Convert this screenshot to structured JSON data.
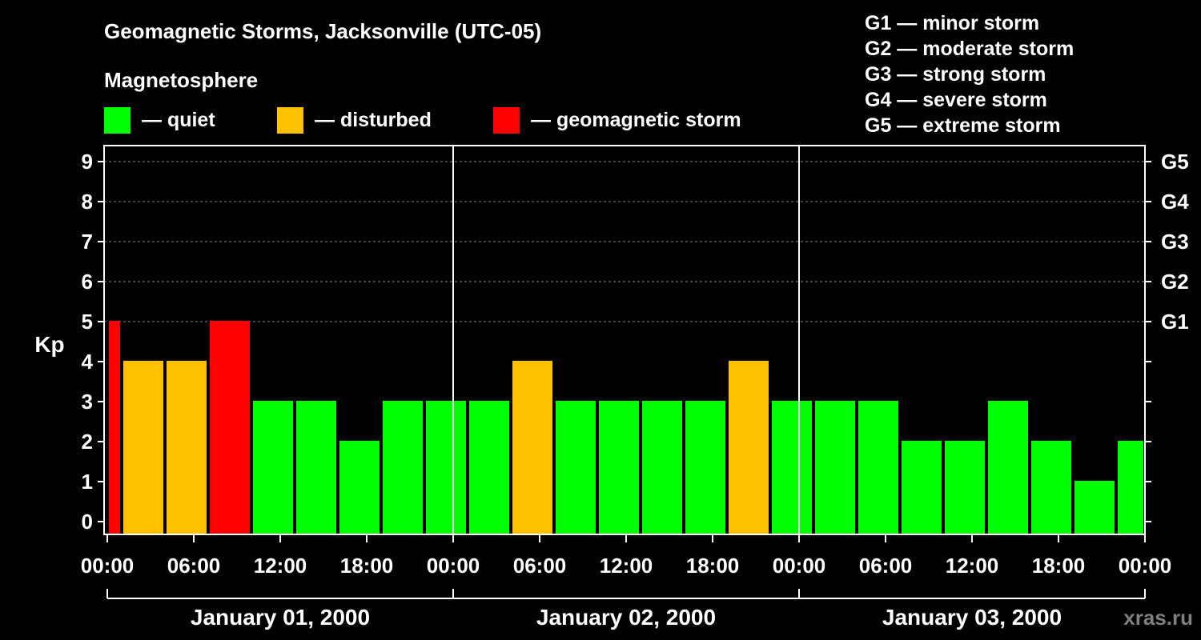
{
  "colors": {
    "background": "#000000",
    "quiet": "#00ff00",
    "disturbed": "#ffc000",
    "storm": "#ff0000",
    "grid": "#888888",
    "axis": "#ffffff"
  },
  "chart_data": {
    "type": "bar",
    "title": "Geomagnetic Storms, Jacksonville (UTC-05)",
    "subtitle": "Magnetosphere",
    "ylabel": "Kp",
    "ylim": [
      0,
      9
    ],
    "y_ticks": [
      "0",
      "1",
      "2",
      "3",
      "4",
      "5",
      "6",
      "7",
      "8",
      "9"
    ],
    "g_ticks": [
      {
        "kp": 5,
        "label": "G1"
      },
      {
        "kp": 6,
        "label": "G2"
      },
      {
        "kp": 7,
        "label": "G3"
      },
      {
        "kp": 8,
        "label": "G4"
      },
      {
        "kp": 9,
        "label": "G5"
      }
    ],
    "legend": [
      {
        "level": "quiet",
        "label": "— quiet"
      },
      {
        "level": "disturbed",
        "label": "— disturbed"
      },
      {
        "level": "storm",
        "label": "— geomagnetic storm"
      }
    ],
    "g_scale": [
      "G1 — minor storm",
      "G2 — moderate storm",
      "G3 — strong storm",
      "G4 — severe storm",
      "G5 — extreme storm"
    ],
    "x_tick_labels": [
      "00:00",
      "06:00",
      "12:00",
      "18:00",
      "00:00",
      "06:00",
      "12:00",
      "18:00",
      "00:00",
      "06:00",
      "12:00",
      "18:00",
      "00:00"
    ],
    "days": [
      "January 01, 2000",
      "January 02, 2000",
      "January 03, 2000"
    ],
    "x_range_hours": [
      0,
      72
    ],
    "bars": [
      {
        "start_hour": 0,
        "end_hour": 1,
        "kp": 5,
        "level": "storm"
      },
      {
        "start_hour": 1,
        "end_hour": 4,
        "kp": 4,
        "level": "disturbed"
      },
      {
        "start_hour": 4,
        "end_hour": 7,
        "kp": 4,
        "level": "disturbed"
      },
      {
        "start_hour": 7,
        "end_hour": 10,
        "kp": 5,
        "level": "storm"
      },
      {
        "start_hour": 10,
        "end_hour": 13,
        "kp": 3,
        "level": "quiet"
      },
      {
        "start_hour": 13,
        "end_hour": 16,
        "kp": 3,
        "level": "quiet"
      },
      {
        "start_hour": 16,
        "end_hour": 19,
        "kp": 2,
        "level": "quiet"
      },
      {
        "start_hour": 19,
        "end_hour": 22,
        "kp": 3,
        "level": "quiet"
      },
      {
        "start_hour": 22,
        "end_hour": 25,
        "kp": 3,
        "level": "quiet"
      },
      {
        "start_hour": 25,
        "end_hour": 28,
        "kp": 3,
        "level": "quiet"
      },
      {
        "start_hour": 28,
        "end_hour": 31,
        "kp": 4,
        "level": "disturbed"
      },
      {
        "start_hour": 31,
        "end_hour": 34,
        "kp": 3,
        "level": "quiet"
      },
      {
        "start_hour": 34,
        "end_hour": 37,
        "kp": 3,
        "level": "quiet"
      },
      {
        "start_hour": 37,
        "end_hour": 40,
        "kp": 3,
        "level": "quiet"
      },
      {
        "start_hour": 40,
        "end_hour": 43,
        "kp": 3,
        "level": "quiet"
      },
      {
        "start_hour": 43,
        "end_hour": 46,
        "kp": 4,
        "level": "disturbed"
      },
      {
        "start_hour": 46,
        "end_hour": 49,
        "kp": 3,
        "level": "quiet"
      },
      {
        "start_hour": 49,
        "end_hour": 52,
        "kp": 3,
        "level": "quiet"
      },
      {
        "start_hour": 52,
        "end_hour": 55,
        "kp": 3,
        "level": "quiet"
      },
      {
        "start_hour": 55,
        "end_hour": 58,
        "kp": 2,
        "level": "quiet"
      },
      {
        "start_hour": 58,
        "end_hour": 61,
        "kp": 2,
        "level": "quiet"
      },
      {
        "start_hour": 61,
        "end_hour": 64,
        "kp": 3,
        "level": "quiet"
      },
      {
        "start_hour": 64,
        "end_hour": 67,
        "kp": 2,
        "level": "quiet"
      },
      {
        "start_hour": 67,
        "end_hour": 70,
        "kp": 1,
        "level": "quiet"
      },
      {
        "start_hour": 70,
        "end_hour": 72,
        "kp": 2,
        "level": "quiet"
      }
    ]
  },
  "footer": {
    "watermark": "xras.ru"
  }
}
